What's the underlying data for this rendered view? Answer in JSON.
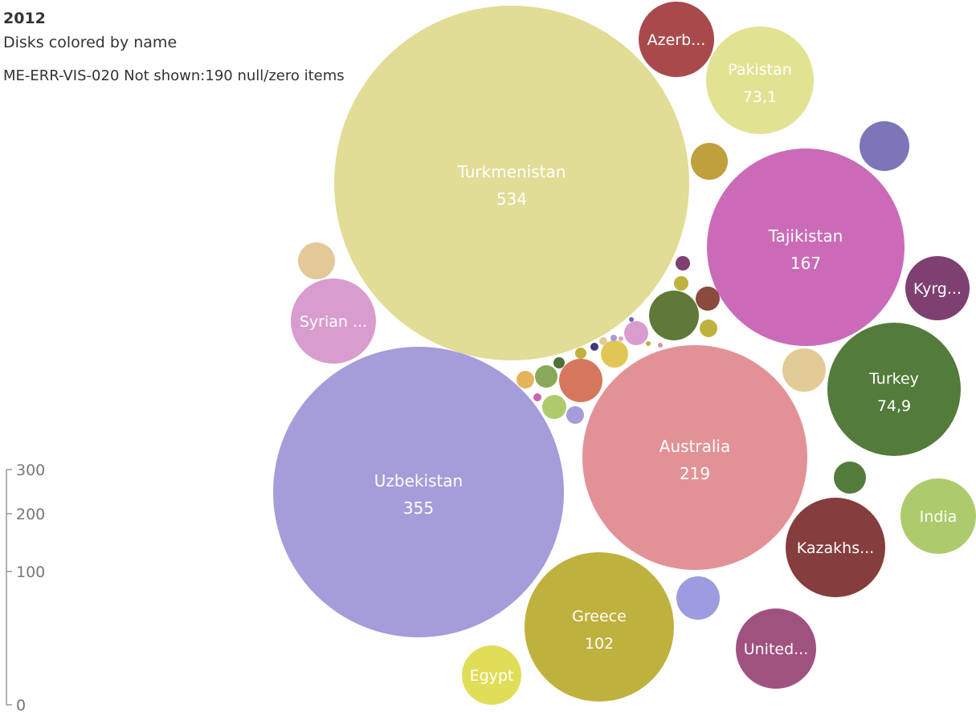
{
  "header": {
    "title": "2012",
    "subtitle": "Disks colored by name",
    "note": "ME-ERR-VIS-020 Not shown:190 null/zero items"
  },
  "chart_data": {
    "type": "bubble",
    "title": "2012",
    "subtitle": "Disks colored by name",
    "size_legend": {
      "ticks": [
        "300",
        "200",
        "100",
        "0"
      ],
      "values": [
        300,
        200,
        100,
        0
      ]
    },
    "bubbles": [
      {
        "name": "Turkmenistan",
        "label": "Turkmenistan",
        "value_label": "534",
        "value": 534,
        "color": "#e1dc96"
      },
      {
        "name": "Uzbekistan",
        "label": "Uzbekistan",
        "value_label": "355",
        "value": 355,
        "color": "#a59cda"
      },
      {
        "name": "Australia",
        "label": "Australia",
        "value_label": "219",
        "value": 219,
        "color": "#e29297"
      },
      {
        "name": "Tajikistan",
        "label": "Tajikistan",
        "value_label": "167",
        "value": 167,
        "color": "#cb6bb8"
      },
      {
        "name": "Greece",
        "label": "Greece",
        "value_label": "102",
        "value": 102,
        "color": "#bfb13d"
      },
      {
        "name": "Turkey",
        "label": "Turkey",
        "value_label": "74,9",
        "value": 74.9,
        "color": "#537b3b"
      },
      {
        "name": "Pakistan",
        "label": "Pakistan",
        "value_label": "73,1",
        "value": 73.1,
        "color": "#e2e293"
      },
      {
        "name": "Azerbaijan",
        "label": "Azerb...",
        "value_label": "",
        "color": "#a84a4c"
      },
      {
        "name": "Syrian",
        "label": "Syrian ...",
        "value_label": "",
        "color": "#d99ccf"
      },
      {
        "name": "Kyrgyzstan",
        "label": "Kyrg...",
        "value_label": "",
        "color": "#7e3f71"
      },
      {
        "name": "Kazakhstan",
        "label": "Kazakhs...",
        "value_label": "",
        "color": "#863d3d"
      },
      {
        "name": "India",
        "label": "India",
        "value_label": "",
        "color": "#adcb6d"
      },
      {
        "name": "United",
        "label": "United...",
        "value_label": "",
        "color": "#a0527f"
      },
      {
        "name": "Egypt",
        "label": "Egypt",
        "value_label": "",
        "color": "#e0de58"
      },
      {
        "name": "unlabeled-1",
        "label": "",
        "value_label": "",
        "color": "#bfa03c"
      },
      {
        "name": "unlabeled-2",
        "label": "",
        "value_label": "",
        "color": "#7b76ba"
      },
      {
        "name": "unlabeled-3",
        "label": "",
        "value_label": "",
        "color": "#e3c997"
      },
      {
        "name": "unlabeled-4",
        "label": "",
        "value_label": "",
        "color": "#e2cb96"
      },
      {
        "name": "unlabeled-5",
        "label": "",
        "value_label": "",
        "color": "#537b3b"
      },
      {
        "name": "unlabeled-6",
        "label": "",
        "value_label": "",
        "color": "#9e9ce0"
      },
      {
        "name": "unlabeled-7",
        "label": "",
        "value_label": "",
        "color": "#5f7a38"
      },
      {
        "name": "unlabeled-8",
        "label": "",
        "value_label": "",
        "color": "#d5775c"
      },
      {
        "name": "unlabeled-9",
        "label": "",
        "value_label": "",
        "color": "#e1c656"
      },
      {
        "name": "unlabeled-10",
        "label": "",
        "value_label": "",
        "color": "#8a4a3e"
      },
      {
        "name": "unlabeled-11",
        "label": "",
        "value_label": "",
        "color": "#7e3f71"
      },
      {
        "name": "unlabeled-12",
        "label": "",
        "value_label": "",
        "color": "#bfb13d"
      },
      {
        "name": "unlabeled-13",
        "label": "",
        "value_label": "",
        "color": "#bfb13d"
      },
      {
        "name": "unlabeled-14",
        "label": "",
        "value_label": "",
        "color": "#d99ccf"
      },
      {
        "name": "unlabeled-15",
        "label": "",
        "value_label": "",
        "color": "#8aa85a"
      },
      {
        "name": "unlabeled-16",
        "label": "",
        "value_label": "",
        "color": "#adcb6d"
      },
      {
        "name": "unlabeled-17",
        "label": "",
        "value_label": "",
        "color": "#e3b45a"
      },
      {
        "name": "unlabeled-18",
        "label": "",
        "value_label": "",
        "color": "#a59cda"
      },
      {
        "name": "unlabeled-19",
        "label": "",
        "value_label": "",
        "color": "#bfb13d"
      },
      {
        "name": "unlabeled-20",
        "label": "",
        "value_label": "",
        "color": "#4f7036"
      },
      {
        "name": "unlabeled-21",
        "label": "",
        "value_label": "",
        "color": "#3e3a7a"
      },
      {
        "name": "unlabeled-22",
        "label": "",
        "value_label": "",
        "color": "#e2cb96"
      },
      {
        "name": "unlabeled-23",
        "label": "",
        "value_label": "",
        "color": "#c865b0"
      },
      {
        "name": "unlabeled-24",
        "label": "",
        "value_label": "",
        "color": "#a59cda"
      },
      {
        "name": "unlabeled-25",
        "label": "",
        "value_label": "",
        "color": "#e2a0c8"
      },
      {
        "name": "unlabeled-26",
        "label": "",
        "value_label": "",
        "color": "#bfb13d"
      },
      {
        "name": "unlabeled-27",
        "label": "",
        "value_label": "",
        "color": "#6e6eb0"
      },
      {
        "name": "unlabeled-28",
        "label": "",
        "value_label": "",
        "color": "#e29297"
      }
    ]
  }
}
